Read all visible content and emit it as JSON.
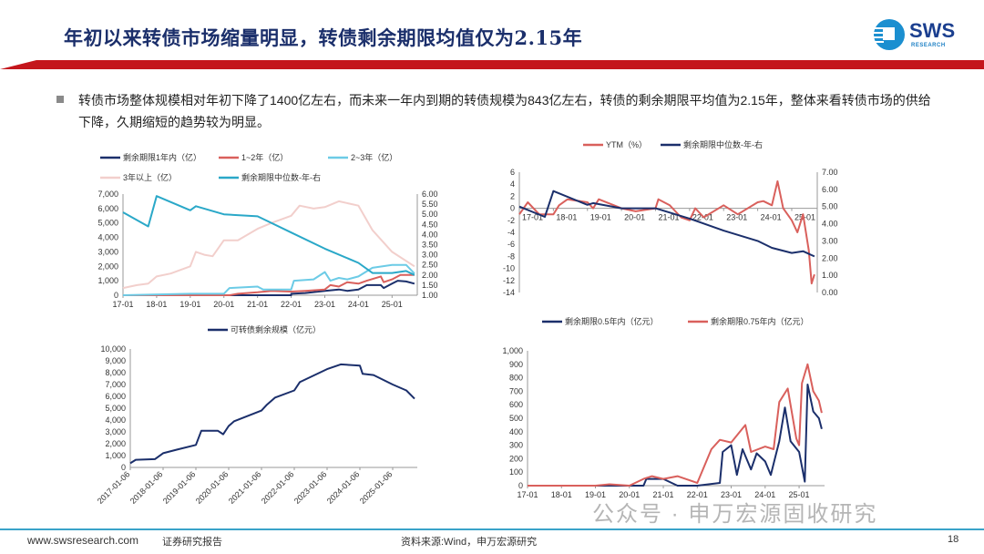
{
  "header": {
    "title": "年初以来转债市场缩量明显，转债剩余期限均值仅为2.15年",
    "logo_text": "SWS",
    "logo_sub": "RESEARCH",
    "accent_color": "#c4161c",
    "title_color": "#1b2f6b"
  },
  "bullet": {
    "text": "转债市场整体规模相对年初下降了1400亿左右，而未来一年内到期的转债规模为843亿左右，转债的剩余期限平均值为2.15年，整体来看转债市场的供给下降，久期缩短的趋势较为明显。"
  },
  "footer": {
    "website": "www.swsresearch.com",
    "report_type": "证券研究报告",
    "source": "资料来源:Wind，申万宏源研究",
    "page_number": "18",
    "watermark": "公众号 · 申万宏源固收研究"
  },
  "chart_data": [
    {
      "type": "line",
      "x_ticks": [
        "17-01",
        "18-01",
        "19-01",
        "20-01",
        "21-01",
        "22-01",
        "23-01",
        "24-01",
        "25-01"
      ],
      "y_ticks": [
        "0",
        "1,000",
        "2,000",
        "3,000",
        "4,000",
        "5,000",
        "6,000",
        "7,000"
      ],
      "y2_ticks": [
        "1.00",
        "1.50",
        "2.00",
        "2.50",
        "3.00",
        "3.50",
        "4.00",
        "4.50",
        "5.00",
        "5.50",
        "6.00"
      ],
      "ylim": [
        0,
        7000
      ],
      "y2lim": [
        1,
        6
      ],
      "legend": "top",
      "series": [
        {
          "name": "剩余期限1年内（亿）",
          "color": "#1b2f6b",
          "axis": "left",
          "points": [
            [
              "2017-01",
              0
            ],
            [
              "2022-01",
              0
            ],
            [
              "2022-01",
              100
            ],
            [
              "2022-06",
              150
            ],
            [
              "2023-01",
              300
            ],
            [
              "2023-06",
              400
            ],
            [
              "2023-09",
              300
            ],
            [
              "2024-01",
              400
            ],
            [
              "2024-04",
              700
            ],
            [
              "2024-09",
              700
            ],
            [
              "2024-10",
              500
            ],
            [
              "2025-01",
              800
            ],
            [
              "2025-03",
              1000
            ],
            [
              "2025-06",
              950
            ],
            [
              "2025-09",
              800
            ]
          ]
        },
        {
          "name": "1~2年（亿）",
          "color": "#d9605c",
          "axis": "left",
          "points": [
            [
              "2017-01",
              0
            ],
            [
              "2020-03",
              0
            ],
            [
              "2020-06",
              100
            ],
            [
              "2021-01",
              200
            ],
            [
              "2021-06",
              300
            ],
            [
              "2022-01",
              250
            ],
            [
              "2022-06",
              300
            ],
            [
              "2023-01",
              400
            ],
            [
              "2023-03",
              700
            ],
            [
              "2023-06",
              600
            ],
            [
              "2023-09",
              900
            ],
            [
              "2024-01",
              800
            ],
            [
              "2024-04",
              1000
            ],
            [
              "2024-09",
              1300
            ],
            [
              "2024-10",
              900
            ],
            [
              "2025-01",
              1100
            ],
            [
              "2025-04",
              1400
            ],
            [
              "2025-09",
              1400
            ]
          ]
        },
        {
          "name": "2~3年（亿）",
          "color": "#6ccbe6",
          "axis": "left",
          "points": [
            [
              "2017-01",
              0
            ],
            [
              "2019-01",
              100
            ],
            [
              "2020-01",
              100
            ],
            [
              "2020-03",
              500
            ],
            [
              "2021-01",
              600
            ],
            [
              "2021-03",
              400
            ],
            [
              "2022-01",
              400
            ],
            [
              "2022-02",
              1000
            ],
            [
              "2022-09",
              1100
            ],
            [
              "2023-01",
              1600
            ],
            [
              "2023-03",
              1000
            ],
            [
              "2023-06",
              1200
            ],
            [
              "2023-09",
              1100
            ],
            [
              "2024-01",
              1300
            ],
            [
              "2024-06",
              1900
            ],
            [
              "2025-01",
              2100
            ],
            [
              "2025-06",
              2100
            ],
            [
              "2025-09",
              1500
            ]
          ]
        },
        {
          "name": "3年以上（亿）",
          "color": "#f2cfcc",
          "axis": "left",
          "points": [
            [
              "2017-01",
              500
            ],
            [
              "2017-06",
              700
            ],
            [
              "2017-10",
              800
            ],
            [
              "2018-01",
              1300
            ],
            [
              "2018-06",
              1500
            ],
            [
              "2019-01",
              2000
            ],
            [
              "2019-03",
              3000
            ],
            [
              "2019-06",
              2800
            ],
            [
              "2019-09",
              2700
            ],
            [
              "2020-01",
              3800
            ],
            [
              "2020-06",
              3800
            ],
            [
              "2021-01",
              4600
            ],
            [
              "2021-06",
              5000
            ],
            [
              "2022-01",
              5500
            ],
            [
              "2022-04",
              6200
            ],
            [
              "2022-09",
              6000
            ],
            [
              "2023-01",
              6100
            ],
            [
              "2023-06",
              6500
            ],
            [
              "2024-01",
              6200
            ],
            [
              "2024-06",
              4500
            ],
            [
              "2025-01",
              3000
            ],
            [
              "2025-09",
              2000
            ]
          ]
        },
        {
          "name": "剩余期限中位数-年-右",
          "color": "#2aa8c8",
          "axis": "right",
          "points": [
            [
              "2017-01",
              5.1
            ],
            [
              "2017-10",
              4.4
            ],
            [
              "2018-01",
              5.9
            ],
            [
              "2019-01",
              5.2
            ],
            [
              "2019-03",
              5.4
            ],
            [
              "2020-01",
              5.0
            ],
            [
              "2021-01",
              4.9
            ],
            [
              "2022-01",
              4.1
            ],
            [
              "2023-01",
              3.3
            ],
            [
              "2024-01",
              2.6
            ],
            [
              "2024-06",
              2.1
            ],
            [
              "2025-01",
              2.1
            ],
            [
              "2025-06",
              2.2
            ],
            [
              "2025-09",
              2.0
            ]
          ]
        }
      ]
    },
    {
      "type": "line",
      "x_ticks": [
        "17-01",
        "18-01",
        "19-01",
        "20-01",
        "21-01",
        "22-01",
        "23-01",
        "24-01",
        "25-01"
      ],
      "y_ticks": [
        "-14",
        "-12",
        "-10",
        "-8",
        "-6",
        "-4",
        "-2",
        "0",
        "2",
        "4",
        "6"
      ],
      "y2_ticks": [
        "0.00",
        "1.00",
        "2.00",
        "3.00",
        "4.00",
        "5.00",
        "6.00",
        "7.00"
      ],
      "ylim": [
        -14,
        6
      ],
      "y2lim": [
        0,
        7
      ],
      "legend": "top",
      "series": [
        {
          "name": "YTM（%）",
          "color": "#d9605c",
          "axis": "left",
          "points": [
            [
              "2017-01",
              -1
            ],
            [
              "2017-04",
              1
            ],
            [
              "2017-08",
              -1
            ],
            [
              "2018-01",
              -1
            ],
            [
              "2018-03",
              0.5
            ],
            [
              "2018-06",
              1.5
            ],
            [
              "2019-01",
              1
            ],
            [
              "2019-03",
              0
            ],
            [
              "2019-05",
              1.5
            ],
            [
              "2020-01",
              0
            ],
            [
              "2020-06",
              -0.5
            ],
            [
              "2021-01",
              0
            ],
            [
              "2021-02",
              1.5
            ],
            [
              "2021-06",
              0.5
            ],
            [
              "2021-10",
              -1.5
            ],
            [
              "2022-01",
              -2
            ],
            [
              "2022-03",
              0
            ],
            [
              "2022-06",
              -1.5
            ],
            [
              "2023-01",
              0.5
            ],
            [
              "2023-06",
              -1
            ],
            [
              "2024-01",
              1
            ],
            [
              "2024-03",
              1.2
            ],
            [
              "2024-06",
              0.5
            ],
            [
              "2024-08",
              4.5
            ],
            [
              "2024-10",
              0
            ],
            [
              "2025-01",
              -2
            ],
            [
              "2025-03",
              -4
            ],
            [
              "2025-05",
              -1
            ],
            [
              "2025-07",
              -7
            ],
            [
              "2025-08",
              -12.5
            ],
            [
              "2025-09",
              -11
            ]
          ]
        },
        {
          "name": "剩余期限中位数-年-右",
          "color": "#1b2f6b",
          "axis": "right",
          "points": [
            [
              "2017-01",
              5.0
            ],
            [
              "2017-10",
              4.4
            ],
            [
              "2018-01",
              5.9
            ],
            [
              "2019-01",
              5.1
            ],
            [
              "2019-03",
              5.2
            ],
            [
              "2020-01",
              4.9
            ],
            [
              "2021-01",
              4.9
            ],
            [
              "2022-01",
              4.3
            ],
            [
              "2023-01",
              3.6
            ],
            [
              "2024-01",
              3.0
            ],
            [
              "2024-06",
              2.6
            ],
            [
              "2025-01",
              2.3
            ],
            [
              "2025-05",
              2.4
            ],
            [
              "2025-09",
              2.1
            ]
          ]
        }
      ]
    },
    {
      "type": "line",
      "x_ticks": [
        "2017-01-06",
        "2018-01-06",
        "2019-01-06",
        "2020-01-06",
        "2021-01-06",
        "2022-01-06",
        "2023-01-06",
        "2024-01-06",
        "2025-01-06"
      ],
      "y_ticks": [
        "0",
        "1,000",
        "2,000",
        "3,000",
        "4,000",
        "5,000",
        "6,000",
        "7,000",
        "8,000",
        "9,000",
        "10,000"
      ],
      "ylim": [
        0,
        10000
      ],
      "legend": "top",
      "series": [
        {
          "name": "可转债剩余规模（亿元）",
          "color": "#1b2f6b",
          "axis": "left",
          "points": [
            [
              "2017-01",
              350
            ],
            [
              "2017-03",
              650
            ],
            [
              "2017-10",
              700
            ],
            [
              "2018-01",
              1200
            ],
            [
              "2018-06",
              1500
            ],
            [
              "2019-01",
              1900
            ],
            [
              "2019-03",
              3100
            ],
            [
              "2019-09",
              3100
            ],
            [
              "2019-11",
              2800
            ],
            [
              "2020-01",
              3500
            ],
            [
              "2020-03",
              3900
            ],
            [
              "2021-01",
              4800
            ],
            [
              "2021-03",
              5300
            ],
            [
              "2021-06",
              5900
            ],
            [
              "2022-01",
              6500
            ],
            [
              "2022-03",
              7200
            ],
            [
              "2023-01",
              8300
            ],
            [
              "2023-06",
              8700
            ],
            [
              "2024-01",
              8600
            ],
            [
              "2024-02",
              7900
            ],
            [
              "2024-06",
              7800
            ],
            [
              "2025-01",
              7000
            ],
            [
              "2025-06",
              6500
            ],
            [
              "2025-09",
              5800
            ]
          ]
        }
      ]
    },
    {
      "type": "line",
      "x_ticks": [
        "17-01",
        "18-01",
        "19-01",
        "20-01",
        "21-01",
        "22-01",
        "23-01",
        "24-01",
        "25-01"
      ],
      "y_ticks": [
        "0",
        "100",
        "200",
        "300",
        "400",
        "500",
        "600",
        "700",
        "800",
        "900",
        "1,000"
      ],
      "ylim": [
        0,
        1000
      ],
      "legend": "top",
      "series": [
        {
          "name": "剩余期限0.5年内（亿元）",
          "color": "#1b2f6b",
          "axis": "left",
          "points": [
            [
              "2017-01",
              0
            ],
            [
              "2020-06",
              0
            ],
            [
              "2020-07",
              50
            ],
            [
              "2021-01",
              50
            ],
            [
              "2021-06",
              0
            ],
            [
              "2022-01",
              0
            ],
            [
              "2022-09",
              20
            ],
            [
              "2022-10",
              250
            ],
            [
              "2023-01",
              300
            ],
            [
              "2023-03",
              80
            ],
            [
              "2023-05",
              270
            ],
            [
              "2023-08",
              120
            ],
            [
              "2023-10",
              240
            ],
            [
              "2024-01",
              180
            ],
            [
              "2024-03",
              80
            ],
            [
              "2024-06",
              330
            ],
            [
              "2024-08",
              580
            ],
            [
              "2024-10",
              330
            ],
            [
              "2025-01",
              250
            ],
            [
              "2025-03",
              30
            ],
            [
              "2025-04",
              750
            ],
            [
              "2025-06",
              550
            ],
            [
              "2025-08",
              500
            ],
            [
              "2025-09",
              420
            ]
          ]
        },
        {
          "name": "剩余期限0.75年内（亿元）",
          "color": "#d9605c",
          "axis": "left",
          "points": [
            [
              "2017-01",
              0
            ],
            [
              "2019-01",
              0
            ],
            [
              "2019-06",
              10
            ],
            [
              "2020-01",
              0
            ],
            [
              "2020-06",
              50
            ],
            [
              "2020-09",
              70
            ],
            [
              "2021-01",
              50
            ],
            [
              "2021-06",
              70
            ],
            [
              "2022-01",
              20
            ],
            [
              "2022-06",
              270
            ],
            [
              "2022-09",
              340
            ],
            [
              "2023-01",
              320
            ],
            [
              "2023-06",
              450
            ],
            [
              "2023-08",
              250
            ],
            [
              "2024-01",
              290
            ],
            [
              "2024-04",
              270
            ],
            [
              "2024-06",
              620
            ],
            [
              "2024-09",
              720
            ],
            [
              "2024-12",
              350
            ],
            [
              "2025-01",
              300
            ],
            [
              "2025-02",
              760
            ],
            [
              "2025-04",
              900
            ],
            [
              "2025-06",
              700
            ],
            [
              "2025-08",
              630
            ],
            [
              "2025-09",
              540
            ]
          ]
        }
      ]
    }
  ]
}
